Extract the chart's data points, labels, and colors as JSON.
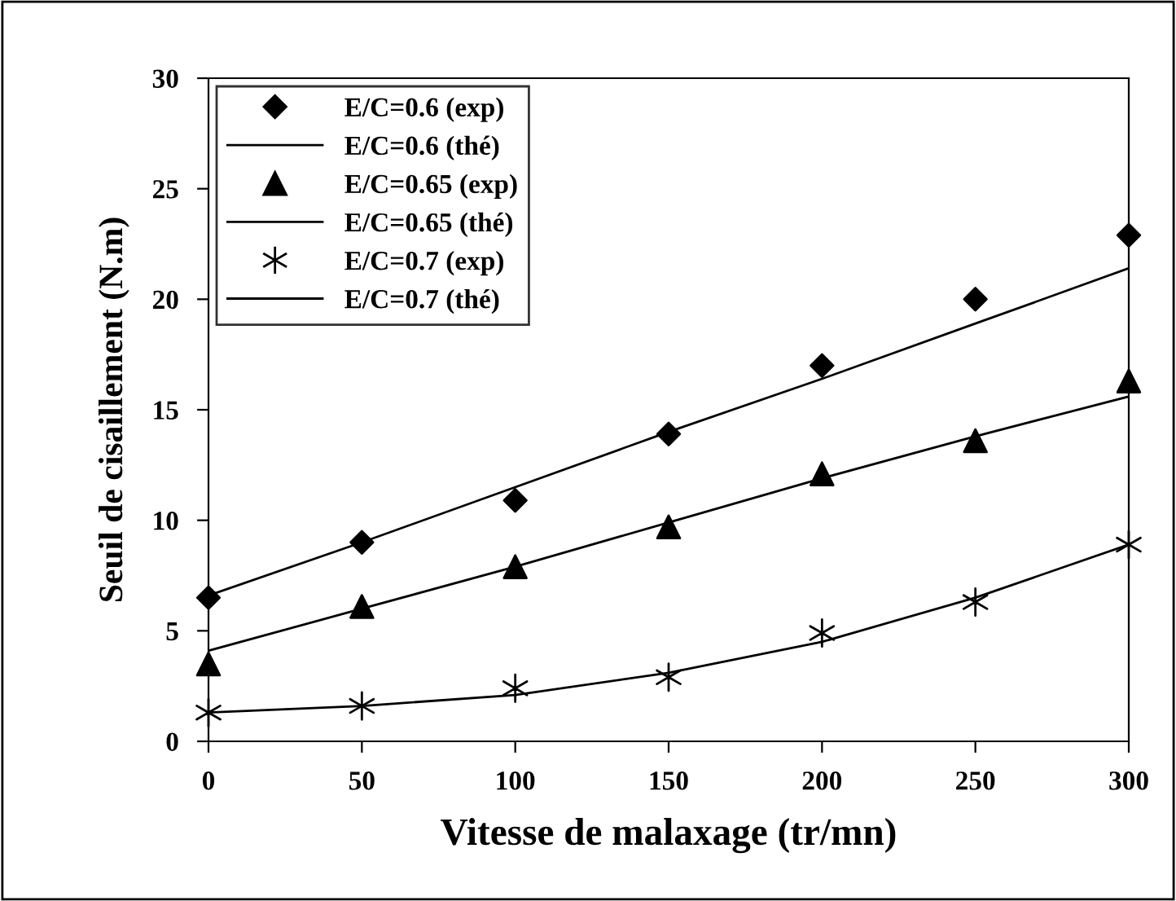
{
  "chart_data": {
    "type": "scatter",
    "xlabel": "Vitesse de malaxage (tr/mn)",
    "ylabel": "Seuil de cisaillement (N.m)",
    "x": [
      0,
      50,
      100,
      150,
      200,
      250,
      300
    ],
    "series": [
      {
        "name": "E/C=0.6 (exp)",
        "marker": "diamond",
        "color": "#000000",
        "values": [
          6.5,
          9.0,
          10.9,
          13.9,
          17.0,
          20.0,
          22.9
        ]
      },
      {
        "name": "E/C=0.6 (thé)",
        "type": "line",
        "marker": "none",
        "color": "#000000",
        "values": [
          6.6,
          9.0,
          11.5,
          14.0,
          16.4,
          18.9,
          21.4
        ]
      },
      {
        "name": "E/C=0.65 (exp)",
        "marker": "triangle",
        "color": "#000000",
        "values": [
          3.5,
          6.1,
          7.9,
          9.7,
          12.1,
          13.6,
          16.3
        ]
      },
      {
        "name": "E/C=0.65 (thé)",
        "type": "line",
        "marker": "none",
        "color": "#000000",
        "values": [
          4.1,
          6.0,
          7.9,
          9.9,
          11.9,
          13.8,
          15.6
        ]
      },
      {
        "name": "E/C=0.7 (exp)",
        "marker": "cross",
        "color": "#000000",
        "values": [
          1.3,
          1.6,
          2.4,
          2.9,
          4.9,
          6.3,
          8.9
        ]
      },
      {
        "name": "E/C=0.7 (thé)",
        "type": "line",
        "marker": "none",
        "color": "#000000",
        "values": [
          1.3,
          1.6,
          2.1,
          3.1,
          4.5,
          6.5,
          8.9
        ]
      }
    ],
    "xlim": [
      0,
      300
    ],
    "xticks": [
      0,
      50,
      100,
      150,
      200,
      250,
      300
    ],
    "ylim": [
      0,
      30
    ],
    "yticks": [
      0,
      5,
      10,
      15,
      20,
      25,
      30
    ],
    "grid": false,
    "legend": "top left",
    "line_style": "solid"
  }
}
